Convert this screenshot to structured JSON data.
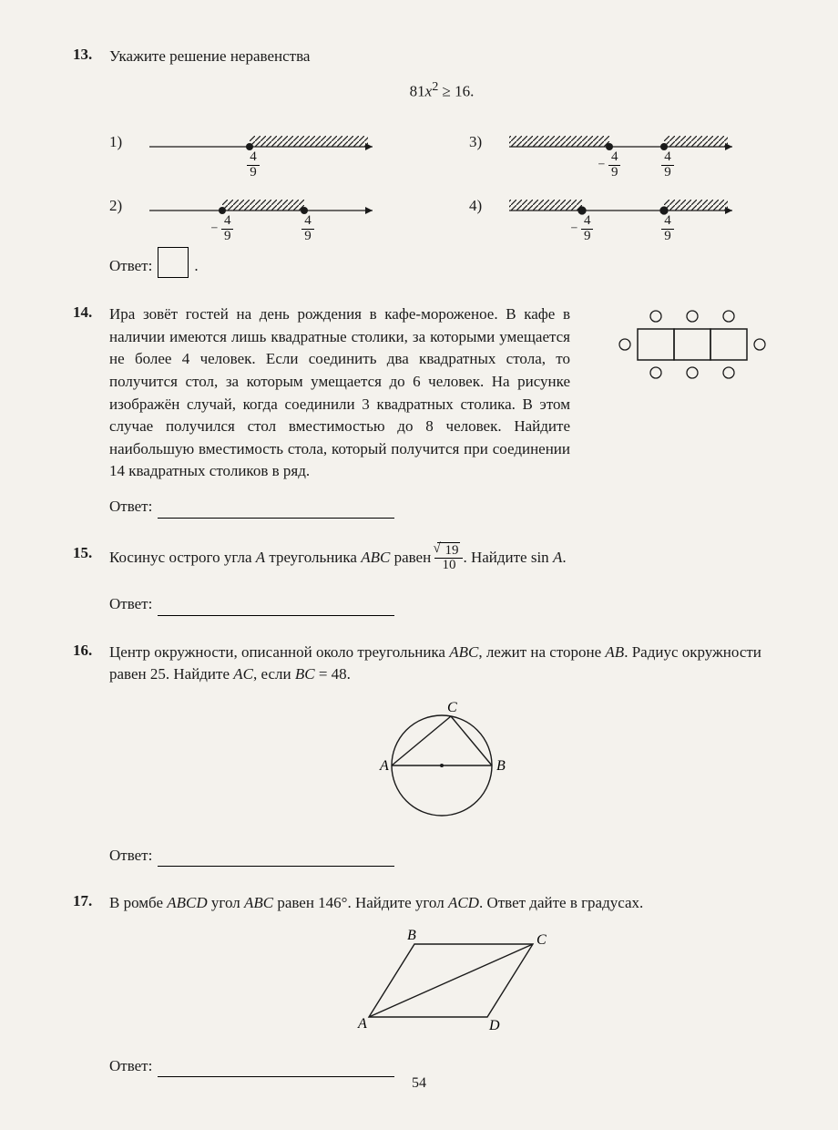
{
  "page_number": "54",
  "q13": {
    "num": "13.",
    "prompt": "Укажите решение неравенства",
    "formula_html": "81<span class='italic'>x</span><sup>2</sup> ≥ 16.",
    "options": {
      "o1": "1)",
      "o2": "2)",
      "o3": "3)",
      "o4": "4)"
    },
    "frac": {
      "num": "4",
      "den": "9"
    },
    "answer_label": "Ответ:"
  },
  "q14": {
    "num": "14.",
    "text": "Ира зовёт гостей на день рождения в кафе-мороженое. В кафе в наличии имеются лишь квадратные столики, за которыми умещается не более 4 человек. Если соединить два квадратных стола, то получится стол, за которым умещается до 6 человек. На рисунке изображён случай, когда соединили 3 квадратных столика. В этом случае получился стол вместимостью до 8 человек. Найдите наибольшую вместимость стола, который получится при соединении 14 квадратных столиков в ряд.",
    "answer_label": "Ответ:"
  },
  "q15": {
    "num": "15.",
    "text_before": "Косинус острого угла ",
    "text_mid1": " треугольника ",
    "text_mid2": " равен ",
    "text_after": ". Найдите sin ",
    "A": "A",
    "ABC": "ABC",
    "sqrt_num": "19",
    "frac_den": "10",
    "answer_label": "Ответ:"
  },
  "q16": {
    "num": "16.",
    "text": "Центр окружности, описанной около треугольника <span class='italic'>ABC</span>, лежит на стороне <span class='italic'>AB</span>. Радиус окружности равен 25. Найдите <span class='italic'>AC</span>, если <span class='italic'>BC</span> = 48.",
    "labels": {
      "A": "A",
      "B": "B",
      "C": "C"
    },
    "answer_label": "Ответ:"
  },
  "q17": {
    "num": "17.",
    "text": "В ромбе <span class='italic'>ABCD</span> угол <span class='italic'>ABC</span> равен 146°. Найдите угол <span class='italic'>ACD</span>. Ответ дайте в градусах.",
    "labels": {
      "A": "A",
      "B": "B",
      "C": "C",
      "D": "D"
    },
    "answer_label": "Ответ:"
  },
  "style": {
    "ink": "#1a1a1a",
    "paper": "#f4f2ed"
  }
}
